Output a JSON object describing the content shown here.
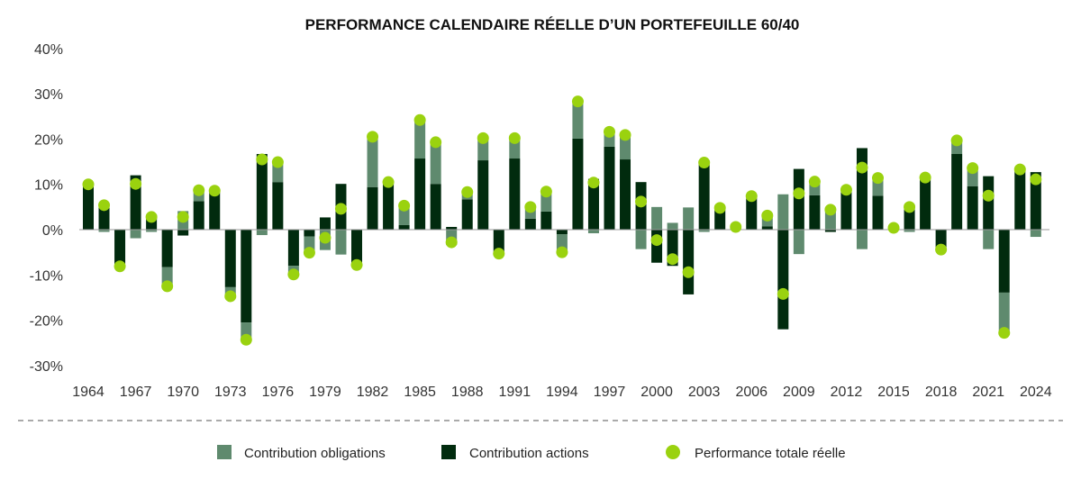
{
  "chart_data": {
    "type": "bar",
    "stacked": true,
    "title": "PERFORMANCE CALENDAIRE RÉELLE D’UN PORTEFEUILLE 60/40",
    "xlabel": "",
    "ylabel": "",
    "ylim": [
      -30,
      40
    ],
    "yticks": [
      "40%",
      "30%",
      "20%",
      "10%",
      "0%",
      "-10%",
      "-20%",
      "-30%"
    ],
    "ytick_values": [
      40,
      30,
      20,
      10,
      0,
      -10,
      -20,
      -30
    ],
    "xtick_labels": [
      "1964",
      "1967",
      "1970",
      "1973",
      "1976",
      "1979",
      "1982",
      "1985",
      "1988",
      "1991",
      "1994",
      "1997",
      "2000",
      "2003",
      "2006",
      "2009",
      "2012",
      "2015",
      "2018",
      "2021",
      "2024"
    ],
    "legend_position": "bottom",
    "grid": false,
    "x": [
      1964,
      1965,
      1966,
      1967,
      1968,
      1969,
      1970,
      1971,
      1972,
      1973,
      1974,
      1975,
      1976,
      1977,
      1978,
      1979,
      1980,
      1981,
      1982,
      1983,
      1984,
      1985,
      1986,
      1987,
      1988,
      1989,
      1990,
      1991,
      1992,
      1993,
      1994,
      1995,
      1996,
      1997,
      1998,
      1999,
      2000,
      2001,
      2002,
      2003,
      2004,
      2005,
      2006,
      2007,
      2008,
      2009,
      2010,
      2011,
      2012,
      2013,
      2014,
      2015,
      2016,
      2017,
      2018,
      2019,
      2020,
      2021,
      2022,
      2023,
      2024
    ],
    "series": [
      {
        "name": "Contribution obligations",
        "kind": "bar",
        "color": "#5f8a6e",
        "values": [
          0,
          -0.5,
          0,
          -1.9,
          -0.5,
          -4.2,
          4.1,
          2.4,
          0,
          -2,
          -3.8,
          -1.2,
          4.4,
          -1.9,
          -3.6,
          -4.5,
          -5.5,
          0,
          11.1,
          0.2,
          4.3,
          8.5,
          9.2,
          -3.4,
          1.6,
          4.9,
          0,
          4.5,
          2.6,
          4.4,
          -4,
          8.2,
          -0.8,
          3.3,
          5.4,
          -4.3,
          5,
          1.5,
          4.9,
          -0.5,
          0.5,
          0.3,
          0.5,
          2.4,
          7.8,
          -5.4,
          3,
          4.9,
          0.5,
          -4.3,
          3.9,
          0.2,
          -0.5,
          0.2,
          0,
          3,
          4,
          -4.3,
          -8.9,
          0.4,
          -1.6
        ]
      },
      {
        "name": "Contribution actions",
        "kind": "bar",
        "color": "#012b0e",
        "values": [
          10,
          5.9,
          -8.1,
          12,
          3.3,
          -8.3,
          -1.3,
          6.3,
          8.6,
          -12.7,
          -20.5,
          16.7,
          10.5,
          -8,
          -1.5,
          2.7,
          10.1,
          -7.8,
          9.4,
          10.3,
          1,
          15.7,
          10.1,
          0.6,
          6.7,
          15.3,
          -5.3,
          15.7,
          2.4,
          4,
          -1,
          20.1,
          11.2,
          18.3,
          15.5,
          10.5,
          -7.3,
          -8,
          -14.3,
          15.3,
          4.3,
          0.3,
          6.9,
          0.7,
          -22,
          13.4,
          7.6,
          -0.5,
          8.3,
          18,
          7.5,
          0.2,
          5.5,
          11.3,
          -4.4,
          16.7,
          9.6,
          11.8,
          -13.9,
          12.9,
          12.7
        ]
      },
      {
        "name": "Performance totale réelle",
        "kind": "dot",
        "color": "#9ad20f",
        "values": [
          10,
          5.4,
          -8.1,
          10.1,
          2.8,
          -12.5,
          2.8,
          8.7,
          8.6,
          -14.7,
          -24.3,
          15.5,
          14.9,
          -9.9,
          -5.1,
          -1.8,
          4.6,
          -7.8,
          20.5,
          10.5,
          5.3,
          24.2,
          19.3,
          -2.8,
          8.3,
          20.2,
          -5.3,
          20.2,
          5,
          8.4,
          -5,
          28.3,
          10.4,
          21.6,
          20.9,
          6.2,
          -2.3,
          -6.5,
          -9.4,
          14.8,
          4.8,
          0.6,
          7.4,
          3.1,
          -14.2,
          8,
          10.6,
          4.4,
          8.8,
          13.7,
          11.4,
          0.4,
          5,
          11.5,
          -4.4,
          19.7,
          13.6,
          7.5,
          -22.8,
          13.3,
          11.1
        ]
      }
    ]
  }
}
